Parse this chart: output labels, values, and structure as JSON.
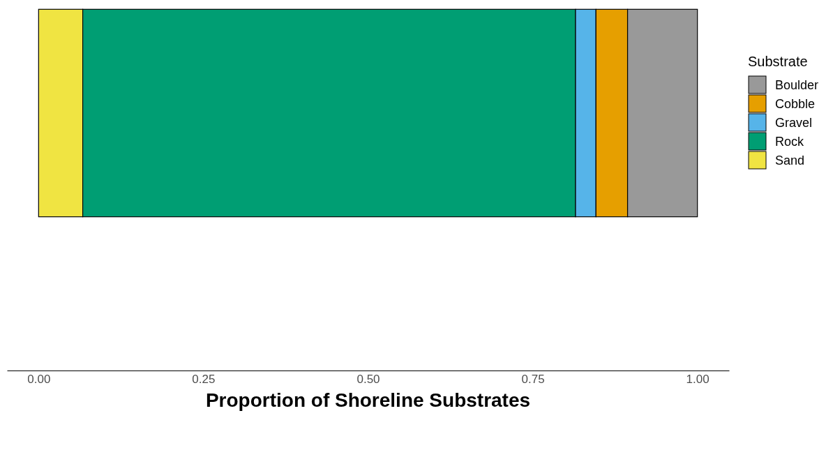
{
  "chart_data": {
    "type": "bar",
    "orientation": "horizontal",
    "stacked": true,
    "xlabel": "Proportion of Shoreline Substrates",
    "legend_title": "Substrate",
    "legend": "right",
    "grid": false,
    "categories": [
      null
    ],
    "xlim": [
      -0.048,
      1.048
    ],
    "xticks": [
      {
        "value": 0,
        "label": "0.00"
      },
      {
        "value": 0.25,
        "label": "0.25"
      },
      {
        "value": 0.5,
        "label": "0.50"
      },
      {
        "value": 0.75,
        "label": "0.75"
      },
      {
        "value": 1,
        "label": "1.00"
      }
    ],
    "series": [
      {
        "name": "Sand",
        "color": "#f0e442",
        "values": [
          0.067
        ]
      },
      {
        "name": "Rock",
        "color": "#009e73",
        "values": [
          0.748
        ]
      },
      {
        "name": "Gravel",
        "color": "#56b4e9",
        "values": [
          0.031
        ]
      },
      {
        "name": "Cobble",
        "color": "#e69f00",
        "values": [
          0.048
        ]
      },
      {
        "name": "Boulder",
        "color": "#999999",
        "values": [
          0.106
        ]
      }
    ]
  }
}
